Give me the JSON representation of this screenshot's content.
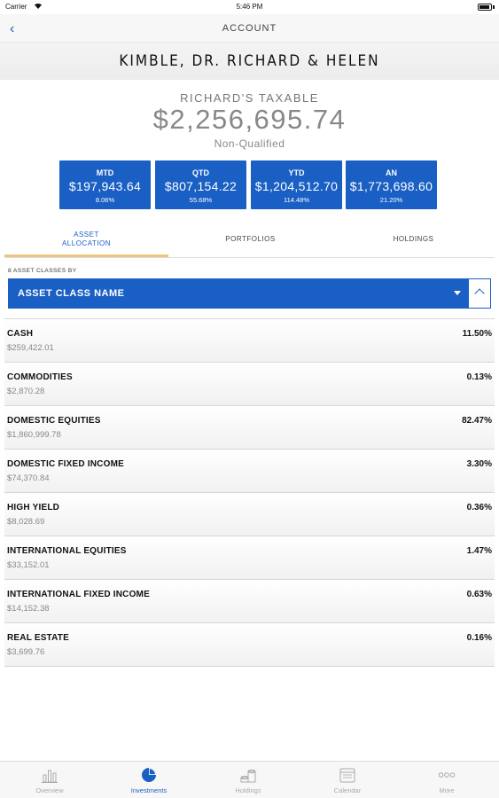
{
  "status_bar": {
    "carrier": "Carrier",
    "time": "5:46 PM"
  },
  "nav": {
    "title": "ACCOUNT",
    "back_icon": "chevron-left-icon"
  },
  "client": {
    "name": "KIMBLE, DR. RICHARD & HELEN"
  },
  "account": {
    "name": "RICHARD'S TAXABLE",
    "total": "$2,256,695.74",
    "type": "Non-Qualified"
  },
  "periods": [
    {
      "label": "MTD",
      "value": "$197,943.64",
      "pct": "8.06%"
    },
    {
      "label": "QTD",
      "value": "$807,154.22",
      "pct": "55.68%"
    },
    {
      "label": "YTD",
      "value": "$1,204,512.70",
      "pct": "114.48%"
    },
    {
      "label": "AN",
      "value": "$1,773,698.60",
      "pct": "21.20%"
    }
  ],
  "tabs": {
    "asset_allocation_line1": "ASSET",
    "asset_allocation_line2": "ALLOCATION",
    "portfolios": "PORTFOLIOS",
    "holdings": "HOLDINGS"
  },
  "grouping": {
    "caption": "8 ASSET CLASSES BY",
    "selected": "ASSET CLASS NAME"
  },
  "assets": [
    {
      "name": "CASH",
      "value": "$259,422.01",
      "pct": "11.50%"
    },
    {
      "name": "COMMODITIES",
      "value": "$2,870.28",
      "pct": "0.13%"
    },
    {
      "name": "DOMESTIC EQUITIES",
      "value": "$1,860,999.78",
      "pct": "82.47%"
    },
    {
      "name": "DOMESTIC FIXED INCOME",
      "value": "$74,370.84",
      "pct": "3.30%"
    },
    {
      "name": "HIGH YIELD",
      "value": "$8,028.69",
      "pct": "0.36%"
    },
    {
      "name": "INTERNATIONAL EQUITIES",
      "value": "$33,152.01",
      "pct": "1.47%"
    },
    {
      "name": "INTERNATIONAL FIXED INCOME",
      "value": "$14,152.38",
      "pct": "0.63%"
    },
    {
      "name": "REAL ESTATE",
      "value": "$3,699.76",
      "pct": "0.16%"
    }
  ],
  "tab_bar": [
    {
      "label": "Overview",
      "icon": "bar-chart-icon"
    },
    {
      "label": "Investments",
      "icon": "pie-chart-icon"
    },
    {
      "label": "Holdings",
      "icon": "coins-icon"
    },
    {
      "label": "Calendar",
      "icon": "calendar-icon"
    },
    {
      "label": "More",
      "icon": "more-dots-icon"
    }
  ],
  "colors": {
    "accent": "#1a5fc4",
    "tab_indicator": "#f0c77a"
  }
}
